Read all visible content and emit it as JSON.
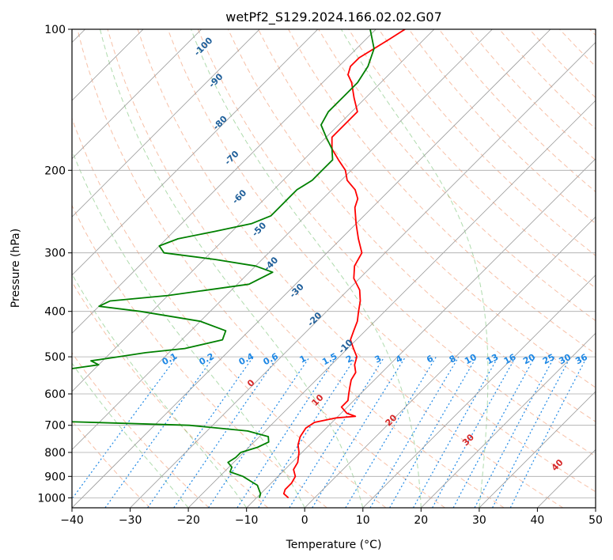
{
  "chart_data": {
    "type": "line",
    "title": "wetPf2_S129.2024.166.02.02.G07",
    "xlabel": "Temperature (°C)",
    "ylabel": "Pressure (hPa)",
    "xlim": [
      -40,
      50
    ],
    "ylim": [
      1050,
      100
    ],
    "y_scale": "log",
    "skew": true,
    "grid": true,
    "x_ticks": [
      -40,
      -30,
      -20,
      -10,
      0,
      10,
      20,
      30,
      40,
      50
    ],
    "y_ticks": [
      100,
      200,
      300,
      400,
      500,
      600,
      700,
      800,
      900,
      1000
    ],
    "series": [
      {
        "kind": "temperature",
        "color": "#ff0000",
        "points": [
          [
            1000,
            -4.5
          ],
          [
            980,
            -6
          ],
          [
            960,
            -6.5
          ],
          [
            930,
            -6.5
          ],
          [
            900,
            -7
          ],
          [
            870,
            -8.5
          ],
          [
            840,
            -9
          ],
          [
            800,
            -10.5
          ],
          [
            770,
            -12
          ],
          [
            740,
            -13
          ],
          [
            710,
            -13.5
          ],
          [
            690,
            -13
          ],
          [
            675,
            -10
          ],
          [
            670,
            -7
          ],
          [
            660,
            -9
          ],
          [
            640,
            -11
          ],
          [
            620,
            -11
          ],
          [
            600,
            -12
          ],
          [
            580,
            -13
          ],
          [
            560,
            -14
          ],
          [
            540,
            -14.5
          ],
          [
            520,
            -16
          ],
          [
            500,
            -17
          ],
          [
            480,
            -19
          ],
          [
            460,
            -21
          ],
          [
            440,
            -22
          ],
          [
            420,
            -23
          ],
          [
            400,
            -24.5
          ],
          [
            380,
            -26
          ],
          [
            360,
            -28
          ],
          [
            340,
            -31
          ],
          [
            320,
            -33
          ],
          [
            300,
            -34
          ],
          [
            280,
            -37
          ],
          [
            260,
            -40
          ],
          [
            240,
            -43
          ],
          [
            230,
            -44
          ],
          [
            220,
            -46
          ],
          [
            210,
            -49
          ],
          [
            200,
            -51
          ],
          [
            190,
            -54
          ],
          [
            180,
            -57
          ],
          [
            170,
            -59
          ],
          [
            160,
            -59
          ],
          [
            150,
            -59
          ],
          [
            140,
            -62
          ],
          [
            130,
            -65
          ],
          [
            125,
            -67
          ],
          [
            120,
            -68
          ],
          [
            115,
            -68
          ],
          [
            110,
            -67
          ],
          [
            105,
            -66
          ],
          [
            100,
            -65
          ]
        ]
      },
      {
        "kind": "dewpoint",
        "color": "#008000",
        "points": [
          [
            1000,
            -9.5
          ],
          [
            980,
            -10
          ],
          [
            960,
            -11
          ],
          [
            940,
            -12
          ],
          [
            920,
            -14
          ],
          [
            900,
            -16
          ],
          [
            880,
            -19
          ],
          [
            860,
            -19.5
          ],
          [
            840,
            -21
          ],
          [
            820,
            -20.5
          ],
          [
            800,
            -20.5
          ],
          [
            780,
            -18.5
          ],
          [
            760,
            -17.5
          ],
          [
            740,
            -18.5
          ],
          [
            720,
            -23
          ],
          [
            700,
            -34
          ],
          [
            685,
            -60
          ],
          [
            678,
            -85
          ],
          [
            670,
            -95
          ],
          [
            660,
            -95
          ],
          [
            655,
            -93
          ],
          [
            650,
            -75
          ],
          [
            645,
            -66
          ],
          [
            640,
            -67
          ],
          [
            625,
            -75
          ],
          [
            610,
            -80
          ],
          [
            600,
            -80
          ],
          [
            595,
            -83
          ],
          [
            590,
            -88
          ],
          [
            580,
            -100
          ],
          [
            565,
            -95
          ],
          [
            550,
            -85
          ],
          [
            540,
            -70
          ],
          [
            530,
            -64
          ],
          [
            520,
            -60
          ],
          [
            510,
            -62
          ],
          [
            500,
            -58
          ],
          [
            490,
            -54
          ],
          [
            480,
            -48
          ],
          [
            460,
            -43
          ],
          [
            440,
            -44
          ],
          [
            420,
            -50
          ],
          [
            400,
            -62
          ],
          [
            390,
            -70
          ],
          [
            380,
            -69
          ],
          [
            370,
            -60
          ],
          [
            350,
            -48
          ],
          [
            330,
            -46
          ],
          [
            320,
            -50
          ],
          [
            310,
            -58
          ],
          [
            300,
            -68
          ],
          [
            290,
            -70
          ],
          [
            280,
            -68
          ],
          [
            270,
            -63
          ],
          [
            260,
            -58
          ],
          [
            250,
            -56
          ],
          [
            240,
            -56
          ],
          [
            230,
            -56
          ],
          [
            220,
            -56
          ],
          [
            210,
            -55
          ],
          [
            200,
            -55
          ],
          [
            190,
            -55
          ],
          [
            180,
            -57
          ],
          [
            170,
            -60
          ],
          [
            160,
            -63
          ],
          [
            150,
            -64
          ],
          [
            140,
            -64
          ],
          [
            130,
            -64
          ],
          [
            120,
            -65
          ],
          [
            110,
            -67
          ],
          [
            100,
            -71
          ]
        ]
      }
    ],
    "dry_adiabat_labels": [
      "0",
      "10",
      "20",
      "30",
      "40"
    ],
    "moist_adiabat_labels": [
      "-100",
      "-90",
      "-80",
      "-70",
      "-60",
      "-50",
      "-40",
      "-30",
      "-20",
      "-10"
    ],
    "mixing_ratio_labels": [
      "0.1",
      "0.2",
      "0.4",
      "0.6",
      "1",
      "1.5",
      "2",
      "3",
      "4",
      "6",
      "8",
      "10",
      "13",
      "16",
      "20",
      "25",
      "30",
      "36"
    ]
  }
}
